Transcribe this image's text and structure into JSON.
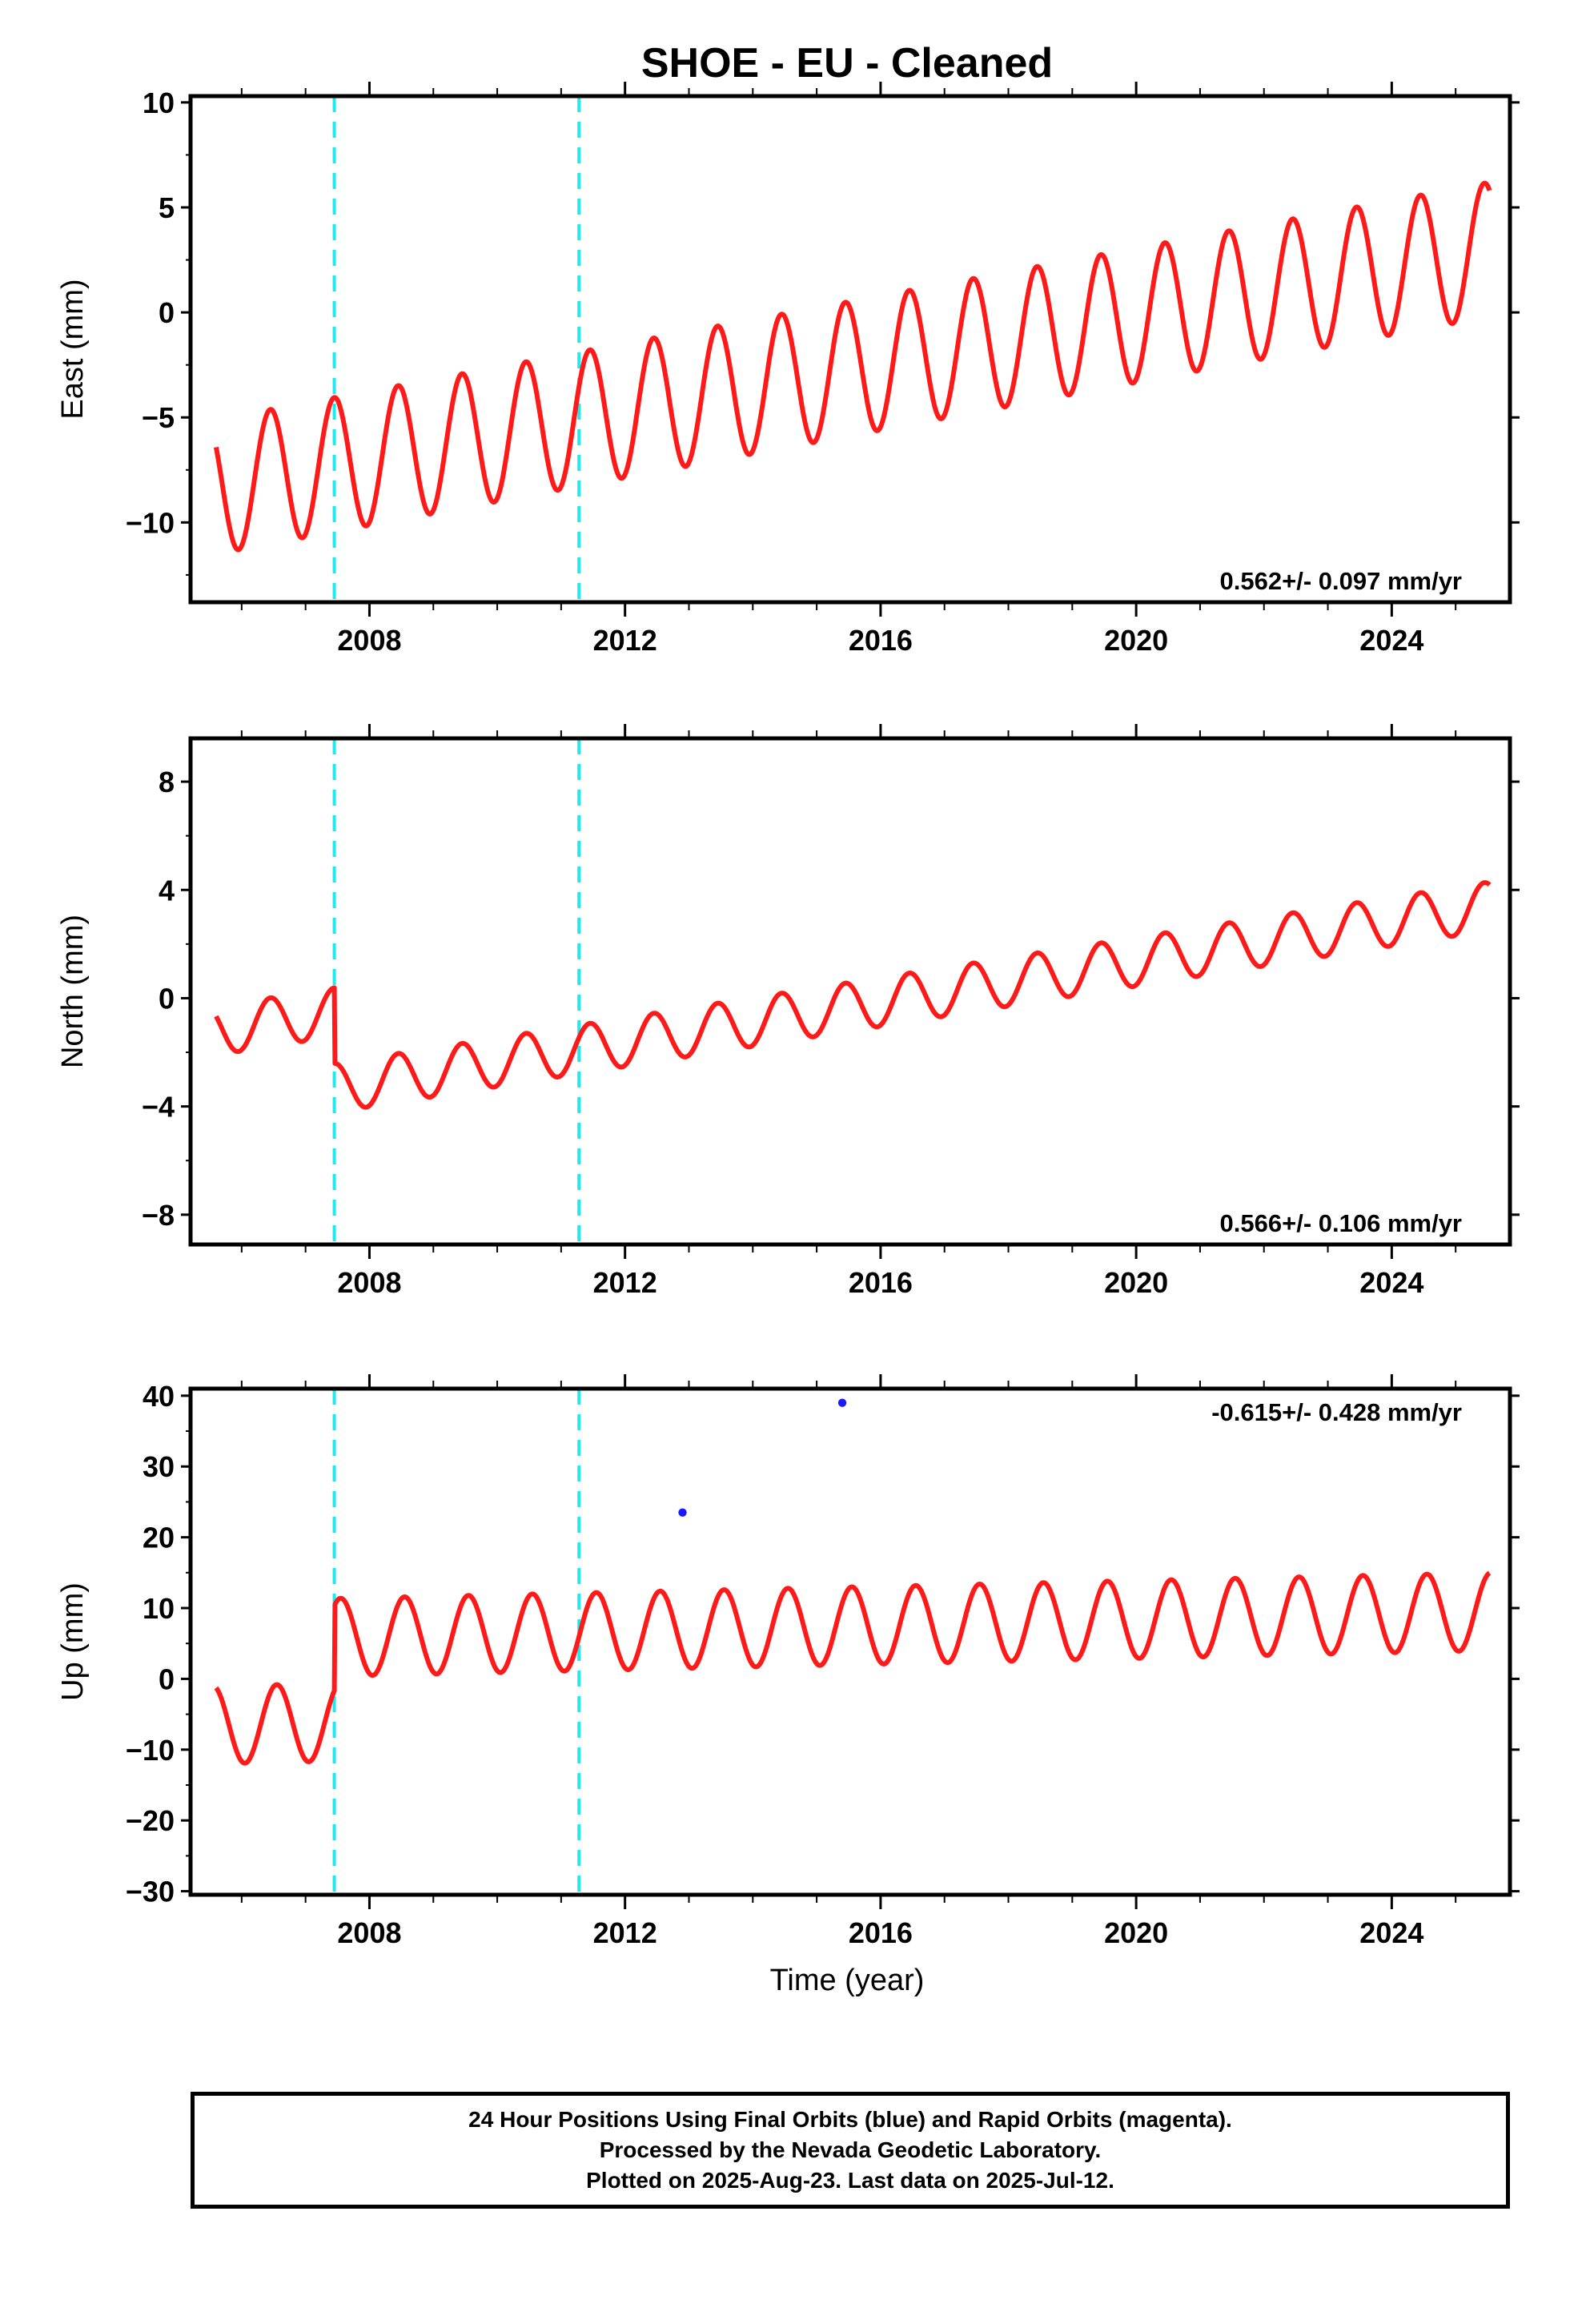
{
  "title": "SHOE  - EU - Cleaned",
  "xlabel": "Time (year)",
  "colors": {
    "points": "#1a1aff",
    "model": "#ff1a1a",
    "events": "#22e8f0",
    "axis": "#000000"
  },
  "chart_data": [
    {
      "type": "scatter",
      "panel": "east",
      "ylabel": "East (mm)",
      "rate": "0.562+/- 0.097 mm/yr",
      "rate_position": "bottom-right",
      "xlim": [
        2005.2,
        2025.85
      ],
      "ylim": [
        -13.8,
        10.3
      ],
      "yticks": [
        -10,
        -5,
        0,
        5,
        10
      ],
      "xticks": [
        2008,
        2012,
        2016,
        2020,
        2024
      ],
      "x_minor_step": 1,
      "event_lines": [
        2007.45,
        2011.28
      ],
      "series": [
        {
          "role": "daily-solution",
          "x_range": [
            2005.6,
            2025.53
          ],
          "trend_at_start": -8.3,
          "trend_at_end": 3.0,
          "annual_amplitude": 3.2,
          "scatter_sd": 1.1,
          "offset_at_event": 0
        }
      ],
      "model_line": {
        "trend_at_start": -8.3,
        "trend_at_end": 3.0,
        "annual_amplitude": 3.2,
        "annual_peak_fraction": 0.45,
        "offset_at_event": 0
      }
    },
    {
      "type": "scatter",
      "panel": "north",
      "ylabel": "North (mm)",
      "rate": "0.566+/- 0.106 mm/yr",
      "rate_position": "bottom-right",
      "xlim": [
        2005.2,
        2025.85
      ],
      "ylim": [
        -9.1,
        9.6
      ],
      "yticks": [
        -8,
        -4,
        0,
        4,
        8
      ],
      "xticks": [
        2008,
        2012,
        2016,
        2020,
        2024
      ],
      "x_minor_step": 1,
      "event_lines": [
        2007.45,
        2011.28
      ],
      "series": [
        {
          "role": "daily-solution",
          "x_range": [
            2005.6,
            2025.53
          ],
          "trend_at_start": -1.2,
          "trend_at_end": 6.2,
          "annual_amplitude": 0.9,
          "scatter_sd": 1.1,
          "offset_at_event": -2.8
        }
      ],
      "model_line": {
        "trend_at_start": -1.2,
        "trend_at_end": 6.2,
        "annual_amplitude": 0.9,
        "annual_peak_fraction": 0.45,
        "offset_at_event": -2.8
      }
    },
    {
      "type": "scatter",
      "panel": "up",
      "ylabel": "Up (mm)",
      "rate": "-0.615+/- 0.428 mm/yr",
      "rate_position": "top-right",
      "xlim": [
        2005.2,
        2025.85
      ],
      "ylim": [
        -30.5,
        41
      ],
      "yticks": [
        -30,
        -20,
        -10,
        0,
        10,
        20,
        30,
        40
      ],
      "xticks": [
        2008,
        2012,
        2016,
        2020,
        2024
      ],
      "x_minor_step": 1,
      "event_lines": [
        2007.45,
        2011.28
      ],
      "series": [
        {
          "role": "daily-solution",
          "x_range": [
            2005.6,
            2025.53
          ],
          "trend_at_start": -6.5,
          "trend_at_end": -2.5,
          "annual_amplitude": 5.5,
          "scatter_sd": 4.3,
          "offset_at_event": 12
        }
      ],
      "model_line": {
        "trend_at_start": -6.5,
        "trend_at_end": -2.5,
        "annual_amplitude": 5.5,
        "annual_peak_fraction": 0.55,
        "offset_at_event": 12
      },
      "outliers": [
        {
          "x": 2015.4,
          "y": 39
        },
        {
          "x": 2012.9,
          "y": 23.5
        }
      ]
    }
  ],
  "footer": {
    "line1": "24 Hour Positions Using Final Orbits (blue) and Rapid Orbits (magenta).",
    "line2": "Processed by the Nevada Geodetic Laboratory.",
    "line3": "Plotted on 2025-Aug-23. Last data on 2025-Jul-12."
  }
}
